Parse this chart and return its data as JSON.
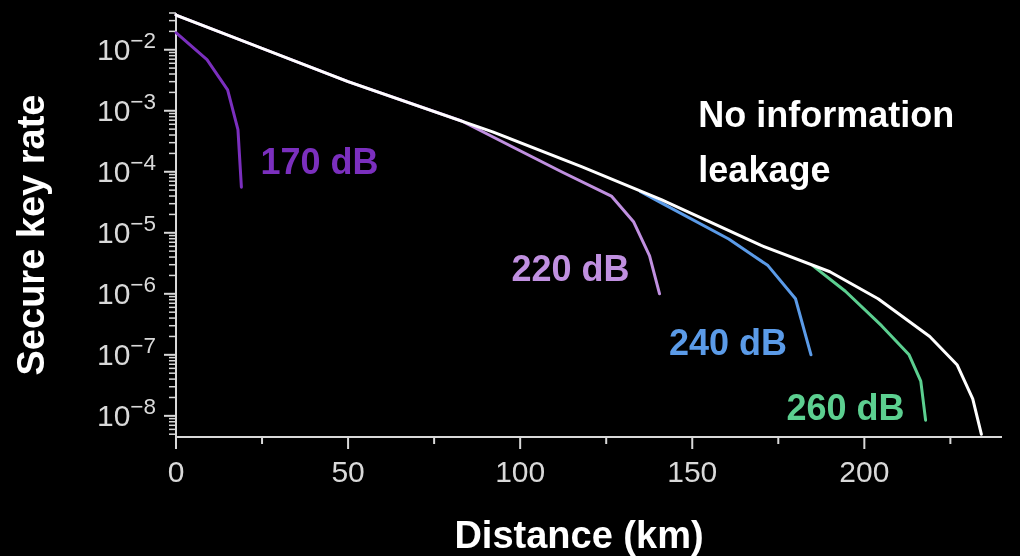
{
  "chart_data": {
    "type": "line",
    "xlabel": "Distance (km)",
    "ylabel": "Secure key rate",
    "log": "y",
    "xlim": [
      0,
      240
    ],
    "ylim": [
      4.5e-09,
      0.04
    ],
    "xticks": [
      0,
      {
        "value": 25,
        "label": null
      },
      50,
      {
        "value": 75,
        "label": null
      },
      100,
      {
        "value": 125,
        "label": null
      },
      150,
      {
        "value": 175,
        "label": null
      },
      200,
      {
        "value": 225,
        "label": null
      }
    ],
    "yticks": [
      {
        "value": 1e-08,
        "label": "10$^{−8}$"
      },
      {
        "value": 1e-07,
        "label": "10$^{−7}$"
      },
      {
        "value": 1e-06,
        "label": "10$^{−6}$"
      },
      {
        "value": 1e-05,
        "label": "10$^{−5}$"
      },
      {
        "value": 0.0001,
        "label": "10$^{−4}$"
      },
      {
        "value": 0.001,
        "label": "10$^{−3}$"
      },
      {
        "value": 0.01,
        "label": "10$^{−2}$"
      },
      {
        "value": 5e-09,
        "label": null
      },
      {
        "value": 6e-09,
        "label": null
      },
      {
        "value": 7e-09,
        "label": null
      },
      {
        "value": 8e-09,
        "label": null
      },
      {
        "value": 9e-09,
        "label": null
      },
      {
        "value": 2e-08,
        "label": null
      },
      {
        "value": 3e-08,
        "label": null
      },
      {
        "value": 4e-08,
        "label": null
      },
      {
        "value": 5e-08,
        "label": null
      },
      {
        "value": 6e-08,
        "label": null
      },
      {
        "value": 7e-08,
        "label": null
      },
      {
        "value": 8e-08,
        "label": null
      },
      {
        "value": 9e-08,
        "label": null
      },
      {
        "value": 2e-07,
        "label": null
      },
      {
        "value": 3e-07,
        "label": null
      },
      {
        "value": 4e-07,
        "label": null
      },
      {
        "value": 5e-07,
        "label": null
      },
      {
        "value": 6e-07,
        "label": null
      },
      {
        "value": 7e-07,
        "label": null
      },
      {
        "value": 8e-07,
        "label": null
      },
      {
        "value": 9e-07,
        "label": null
      },
      {
        "value": 2e-06,
        "label": null
      },
      {
        "value": 3e-06,
        "label": null
      },
      {
        "value": 4e-06,
        "label": null
      },
      {
        "value": 5e-06,
        "label": null
      },
      {
        "value": 6e-06,
        "label": null
      },
      {
        "value": 7e-06,
        "label": null
      },
      {
        "value": 8e-06,
        "label": null
      },
      {
        "value": 9e-06,
        "label": null
      },
      {
        "value": 2e-05,
        "label": null
      },
      {
        "value": 3e-05,
        "label": null
      },
      {
        "value": 4e-05,
        "label": null
      },
      {
        "value": 5e-05,
        "label": null
      },
      {
        "value": 6e-05,
        "label": null
      },
      {
        "value": 7e-05,
        "label": null
      },
      {
        "value": 8e-05,
        "label": null
      },
      {
        "value": 9e-05,
        "label": null
      },
      {
        "value": 0.0002,
        "label": null
      },
      {
        "value": 0.0003,
        "label": null
      },
      {
        "value": 0.0004,
        "label": null
      },
      {
        "value": 0.0005,
        "label": null
      },
      {
        "value": 0.0006,
        "label": null
      },
      {
        "value": 0.0007,
        "label": null
      },
      {
        "value": 0.0008,
        "label": null
      },
      {
        "value": 0.0009,
        "label": null
      },
      {
        "value": 0.002,
        "label": null
      },
      {
        "value": 0.003,
        "label": null
      },
      {
        "value": 0.004,
        "label": null
      },
      {
        "value": 0.005,
        "label": null
      },
      {
        "value": 0.006,
        "label": null
      },
      {
        "value": 0.007,
        "label": null
      },
      {
        "value": 0.008,
        "label": null
      },
      {
        "value": 0.009,
        "label": null
      },
      {
        "value": 0.02,
        "label": null
      },
      {
        "value": 0.03,
        "label": null
      },
      {
        "value": 0.04,
        "label": null
      }
    ],
    "series": [
      {
        "name": "170 dB",
        "color": "#7b2fbe",
        "x": [
          0,
          9,
          15,
          18,
          19
        ],
        "values": [
          0.019,
          0.0069,
          0.0022,
          0.00049,
          5.6e-05
        ]
      },
      {
        "name": "220 dB",
        "color": "#c090e0",
        "x": [
          0,
          50,
          83,
          112,
          126.5,
          133,
          137.6,
          140.5
        ],
        "values": [
          0.037,
          0.003,
          0.00068,
          0.0001,
          4e-05,
          1.5e-05,
          4.2e-06,
          1e-06
        ]
      },
      {
        "name": "240 dB",
        "color": "#5b9be8",
        "x": [
          135,
          141,
          160.6,
          172,
          180,
          184.5
        ],
        "values": [
          4.7e-05,
          3.1e-05,
          7.9e-06,
          2.9e-06,
          8.3e-07,
          1e-07
        ]
      },
      {
        "name": "260 dB",
        "color": "#5ccf90",
        "x": [
          185,
          194.5,
          205,
          213,
          216.4,
          217.8
        ],
        "values": [
          2.9e-06,
          1.1e-06,
          3e-07,
          1e-07,
          3.7e-08,
          8.5e-09
        ]
      },
      {
        "name": "No information leakage",
        "color": "#ffffff",
        "x": [
          0,
          50,
          92,
          118,
          141,
          170,
          190,
          204,
          219,
          227,
          231.5,
          234
        ],
        "values": [
          0.037,
          0.003,
          0.00045,
          0.00012,
          3.5e-05,
          6.2e-06,
          2.3e-06,
          8.3e-07,
          2e-07,
          6.8e-08,
          1.9e-08,
          5e-09
        ]
      }
    ]
  }
}
